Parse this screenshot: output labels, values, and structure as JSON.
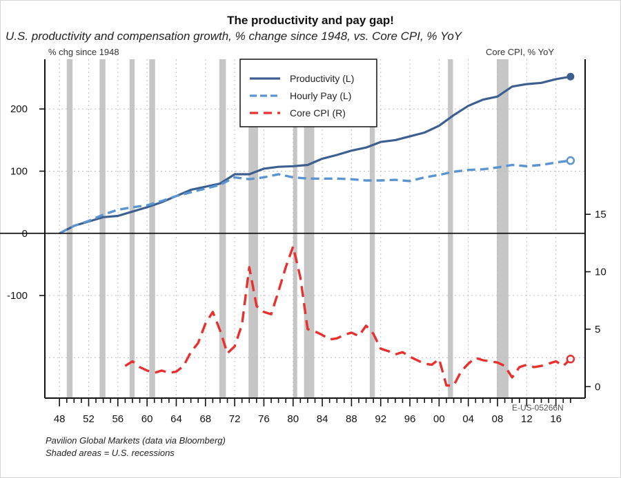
{
  "header": {
    "title": "The productivity and pay gap!",
    "subtitle": "U.S. productivity and compensation growth, % change since 1948, vs. Core CPI, % YoY",
    "left_unit": "% chg since 1948",
    "right_unit": "Core CPI, % YoY"
  },
  "footer": {
    "source": "Pavilion Global Markets (data via Bloomberg)",
    "note": "Shaded areas = U.S. recessions",
    "code": "E-US-05266N"
  },
  "colors": {
    "productivity": "#3d5f8f",
    "hourly_pay": "#5b95d1",
    "core_cpi": "#e8302e",
    "recession": "#c6c6c6",
    "grid": "#bdbdbd"
  },
  "chart_data": {
    "type": "line",
    "title": "The productivity and pay gap!",
    "subtitle": "U.S. productivity and compensation growth, % change since 1948, vs. Core CPI, % YoY",
    "xlabel": "",
    "ylabel_left": "% chg since 1948",
    "ylabel_right": "Core CPI, % YoY",
    "xlim": [
      1946,
      2020
    ],
    "ylim_left": [
      -265,
      280
    ],
    "ylim_right": [
      -1,
      28.5
    ],
    "grid": true,
    "legend_position": "top-center",
    "x_tick_labels": [
      "48",
      "52",
      "56",
      "60",
      "64",
      "68",
      "72",
      "76",
      "80",
      "84",
      "88",
      "92",
      "96",
      "00",
      "04",
      "08",
      "12",
      "16"
    ],
    "x_tick_values": [
      1948,
      1952,
      1956,
      1960,
      1964,
      1968,
      1972,
      1976,
      1980,
      1984,
      1988,
      1992,
      1996,
      2000,
      2004,
      2008,
      2012,
      2016
    ],
    "left_ticks": [
      -100,
      0,
      100,
      200
    ],
    "left_tick_labels": [
      "-100",
      "0",
      "100",
      "200"
    ],
    "right_ticks": [
      0,
      5,
      10,
      15
    ],
    "right_tick_labels": [
      "0",
      "5",
      "10",
      "15"
    ],
    "recessions": [
      [
        1949,
        1949.8
      ],
      [
        1953.5,
        1954.3
      ],
      [
        1957.6,
        1958.3
      ],
      [
        1960.3,
        1961.1
      ],
      [
        1969.9,
        1970.8
      ],
      [
        1973.9,
        1975.2
      ],
      [
        1980,
        1980.5
      ],
      [
        1981.5,
        1982.9
      ],
      [
        1990.5,
        1991.2
      ],
      [
        2001.2,
        2001.9
      ],
      [
        2007.9,
        2009.5
      ]
    ],
    "series": [
      {
        "name": "Productivity (L)",
        "axis": "left",
        "style": "solid",
        "x": [
          1948,
          1950,
          1952,
          1954,
          1956,
          1958,
          1960,
          1962,
          1964,
          1966,
          1968,
          1970,
          1972,
          1974,
          1976,
          1978,
          1980,
          1982,
          1984,
          1986,
          1988,
          1990,
          1992,
          1994,
          1996,
          1998,
          2000,
          2002,
          2004,
          2006,
          2008,
          2010,
          2012,
          2014,
          2016,
          2018
        ],
        "values": [
          0,
          12,
          19,
          26,
          28,
          35,
          42,
          50,
          60,
          70,
          75,
          80,
          95,
          95,
          104,
          107,
          108,
          110,
          120,
          126,
          133,
          138,
          147,
          150,
          156,
          162,
          173,
          190,
          205,
          215,
          220,
          236,
          240,
          242,
          248,
          252
        ]
      },
      {
        "name": "Hourly Pay (L)",
        "axis": "left",
        "style": "dashed",
        "x": [
          1948,
          1950,
          1952,
          1954,
          1956,
          1958,
          1960,
          1962,
          1964,
          1966,
          1968,
          1970,
          1972,
          1974,
          1976,
          1978,
          1980,
          1982,
          1984,
          1986,
          1988,
          1990,
          1992,
          1994,
          1996,
          1998,
          2000,
          2002,
          2004,
          2006,
          2008,
          2010,
          2012,
          2014,
          2016,
          2018
        ],
        "values": [
          0,
          12,
          20,
          30,
          38,
          42,
          45,
          52,
          60,
          66,
          72,
          78,
          90,
          87,
          90,
          95,
          90,
          88,
          88,
          88,
          87,
          85,
          85,
          86,
          84,
          90,
          94,
          99,
          102,
          103,
          106,
          110,
          108,
          110,
          114,
          117
        ]
      },
      {
        "name": "Core CPI (R)",
        "axis": "right",
        "style": "dashed",
        "x": [
          1957,
          1958,
          1959,
          1960,
          1961,
          1962,
          1963,
          1964,
          1965,
          1966,
          1967,
          1968,
          1969,
          1970,
          1971,
          1972,
          1973,
          1974,
          1975,
          1976,
          1977,
          1978,
          1979,
          1980,
          1981,
          1982,
          1983,
          1984,
          1985,
          1986,
          1987,
          1988,
          1989,
          1990,
          1991,
          1992,
          1993,
          1994,
          1995,
          1996,
          1997,
          1998,
          1999,
          2000,
          2001,
          2002,
          2003,
          2004,
          2005,
          2006,
          2007,
          2008,
          2009,
          2010,
          2011,
          2012,
          2013,
          2014,
          2015,
          2016,
          2017,
          2018
        ],
        "values": [
          1.8,
          2.2,
          1.7,
          1.4,
          1.2,
          1.4,
          1.2,
          1.3,
          1.8,
          3.0,
          3.8,
          5.5,
          6.5,
          4.9,
          2.9,
          3.5,
          5.4,
          10.4,
          7.0,
          6.5,
          6.3,
          8.3,
          10.4,
          12.2,
          9.5,
          5.0,
          4.8,
          4.5,
          4.1,
          4.2,
          4.5,
          4.7,
          4.4,
          5.3,
          4.6,
          3.3,
          3.1,
          2.8,
          3.0,
          2.6,
          2.3,
          2.0,
          1.9,
          2.4,
          0.1,
          0.1,
          1.3,
          2.0,
          2.5,
          2.3,
          2.2,
          2.1,
          1.8,
          0.8,
          1.7,
          1.9,
          1.7,
          1.8,
          2.0,
          2.2,
          1.8,
          2.4
        ]
      }
    ]
  }
}
